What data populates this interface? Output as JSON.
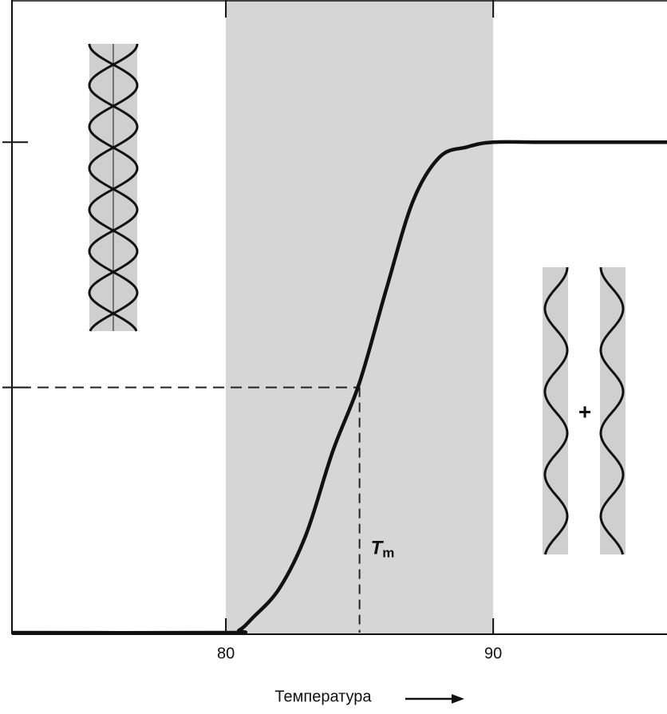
{
  "chart_data": {
    "type": "line",
    "x_label": "Температура",
    "x": [
      72,
      80,
      80.5,
      81,
      82,
      83,
      84,
      85,
      86,
      87,
      88,
      89,
      90,
      92,
      96.5
    ],
    "series": [
      {
        "color": "#111111",
        "values": [
          0,
          0,
          0.005,
          0.03,
          0.09,
          0.2,
          0.37,
          0.51,
          0.7,
          0.88,
          0.97,
          0.99,
          1,
          1,
          1
        ]
      }
    ],
    "xlim": [
      72,
      96.5
    ],
    "xticks": [
      80,
      90
    ],
    "ylim": [
      0,
      1.29
    ],
    "yticks": [
      0.5,
      1
    ],
    "shade": {
      "range": [
        80,
        90
      ],
      "color": "#d6d6d6"
    },
    "tm": {
      "value": 85,
      "symbol": "T",
      "subscript": "m"
    },
    "midpoint": 0.5,
    "plus": "+"
  }
}
